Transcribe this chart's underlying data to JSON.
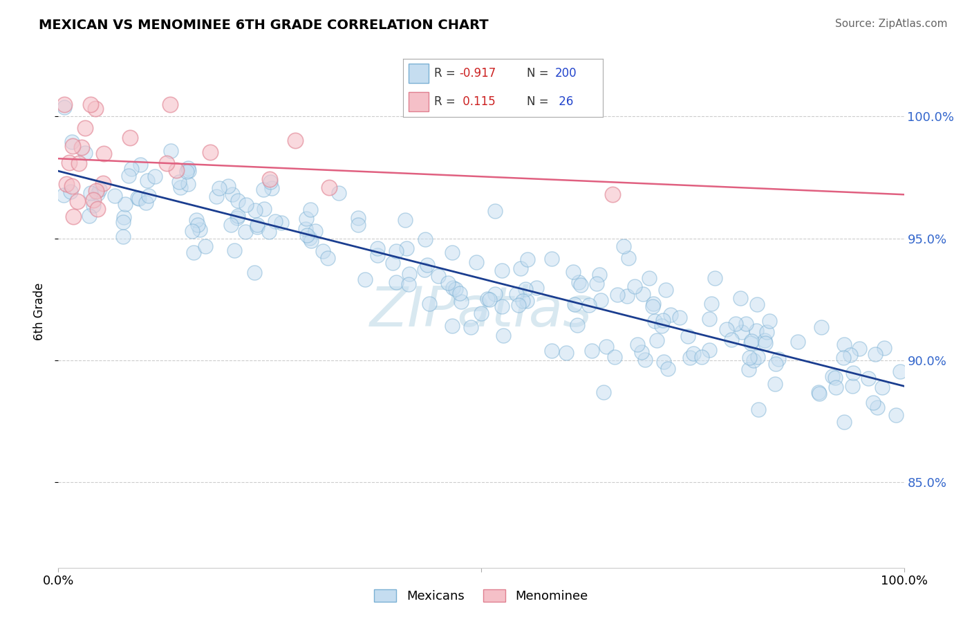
{
  "title": "MEXICAN VS MENOMINEE 6TH GRADE CORRELATION CHART",
  "source": "Source: ZipAtlas.com",
  "ylabel": "6th Grade",
  "ytick_labels": [
    "85.0%",
    "90.0%",
    "95.0%",
    "100.0%"
  ],
  "ytick_values": [
    0.85,
    0.9,
    0.95,
    1.0
  ],
  "legend_blue_r": "-0.917",
  "legend_blue_n": "200",
  "legend_pink_r": "0.115",
  "legend_pink_n": "26",
  "blue_color": "#c5ddf0",
  "blue_edge": "#7ab0d4",
  "pink_color": "#f5c0c8",
  "pink_edge": "#e08090",
  "blue_line_color": "#1a3d8f",
  "pink_line_color": "#e06080",
  "watermark_color": "#d8e8f0",
  "blue_r": -0.917,
  "pink_r": 0.115,
  "ylim_low": 0.815,
  "ylim_high": 1.025,
  "seed": 99
}
